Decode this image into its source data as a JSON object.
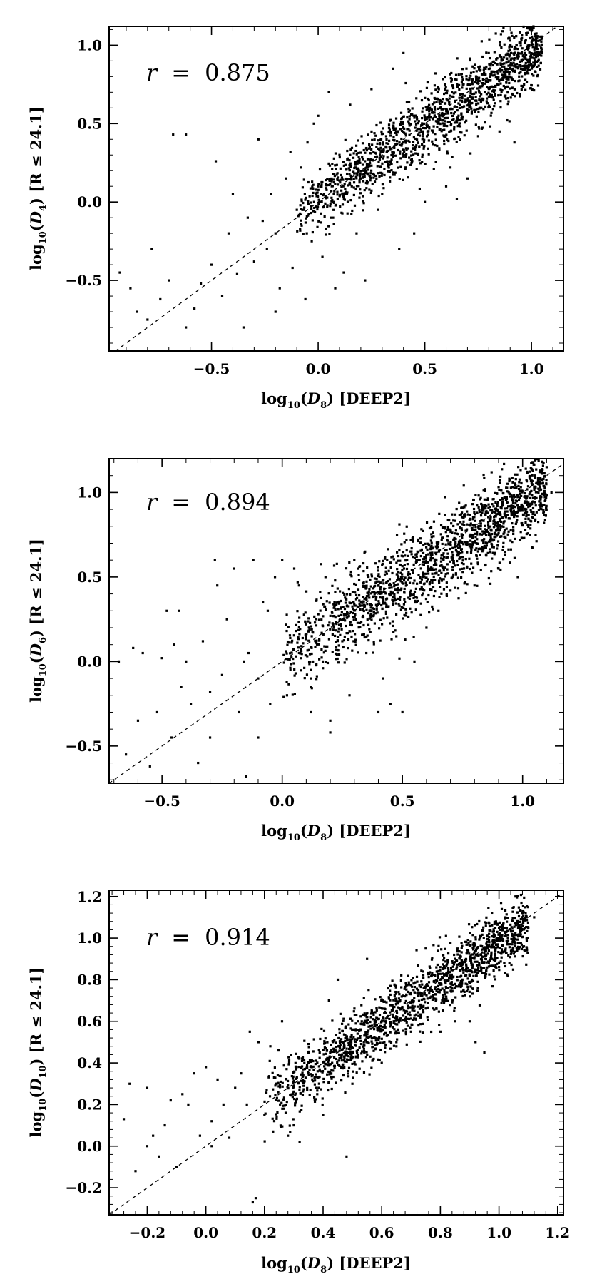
{
  "chart_data": [
    {
      "type": "scatter",
      "annotation": {
        "variable": "r",
        "equals": "=",
        "value": "0.875"
      },
      "xlabel": {
        "prefix": "log",
        "sub": "10",
        "open": "(",
        "var": "D",
        "var_sub": "8",
        "close": ")",
        "suffix": " [DEEP2]"
      },
      "ylabel": {
        "prefix": "log",
        "sub": "10",
        "open": "(",
        "var": "D",
        "var_sub": "4",
        "close": ")",
        "suffix": " [R ≤ 24.1]"
      },
      "xlim": [
        -0.98,
        1.15
      ],
      "ylim": [
        -0.95,
        1.12
      ],
      "xticks": [
        -0.5,
        0.0,
        0.5,
        1.0
      ],
      "xtick_labels": [
        "−0.5",
        "0.0",
        "0.5",
        "1.0"
      ],
      "yticks": [
        -0.5,
        0.0,
        0.5,
        1.0
      ],
      "ytick_labels": [
        "−0.5",
        "0.0",
        "0.5",
        "1.0"
      ],
      "reference_line": {
        "style": "dashed",
        "slope": 1,
        "intercept": 0
      },
      "points": [
        [
          -0.93,
          -0.45
        ],
        [
          -0.88,
          -0.55
        ],
        [
          -0.85,
          -0.7
        ],
        [
          -0.8,
          -0.75
        ],
        [
          -0.78,
          -0.3
        ],
        [
          -0.74,
          -0.62
        ],
        [
          -0.7,
          -0.5
        ],
        [
          -0.68,
          0.43
        ],
        [
          -0.62,
          0.43
        ],
        [
          -0.58,
          -0.68
        ],
        [
          -0.55,
          -0.52
        ],
        [
          -0.5,
          -0.4
        ],
        [
          -0.48,
          0.26
        ],
        [
          -0.45,
          -0.6
        ],
        [
          -0.42,
          -0.2
        ],
        [
          -0.4,
          0.05
        ],
        [
          -0.38,
          -0.46
        ],
        [
          -0.35,
          -0.8
        ],
        [
          -0.33,
          -0.1
        ],
        [
          -0.3,
          -0.38
        ],
        [
          -0.28,
          0.4
        ],
        [
          -0.26,
          -0.12
        ],
        [
          -0.24,
          -0.3
        ],
        [
          -0.22,
          0.05
        ],
        [
          -0.2,
          -0.2
        ],
        [
          -0.18,
          -0.55
        ],
        [
          -0.15,
          0.15
        ],
        [
          -0.13,
          0.32
        ],
        [
          -0.12,
          -0.42
        ],
        [
          -0.1,
          -0.05
        ],
        [
          -0.08,
          0.22
        ],
        [
          -0.06,
          -0.62
        ],
        [
          -0.05,
          0.38
        ],
        [
          -0.03,
          -0.25
        ],
        [
          0.0,
          0.55
        ],
        [
          0.0,
          0.1
        ],
        [
          0.02,
          -0.35
        ],
        [
          0.05,
          0.7
        ],
        [
          0.07,
          -0.1
        ],
        [
          0.1,
          0.3
        ],
        [
          0.12,
          -0.45
        ],
        [
          0.15,
          0.62
        ],
        [
          0.18,
          -0.2
        ],
        [
          0.2,
          0.15
        ],
        [
          0.22,
          -0.5
        ],
        [
          0.25,
          0.72
        ],
        [
          0.28,
          -0.05
        ],
        [
          0.3,
          0.05
        ],
        [
          0.35,
          0.85
        ],
        [
          0.38,
          -0.3
        ],
        [
          0.45,
          -0.2
        ],
        [
          0.5,
          0.0
        ],
        [
          0.55,
          0.82
        ],
        [
          0.6,
          0.1
        ],
        [
          0.65,
          0.02
        ],
        [
          0.7,
          0.15
        ],
        [
          0.75,
          0.42
        ],
        [
          0.85,
          0.45
        ],
        [
          0.92,
          0.38
        ],
        [
          1.0,
          1.0
        ],
        [
          1.05,
          1.05
        ],
        [
          0.98,
          0.86
        ],
        [
          0.9,
          0.85
        ],
        [
          -0.62,
          -0.8
        ],
        [
          -0.2,
          -0.7
        ],
        [
          0.08,
          -0.55
        ],
        [
          0.4,
          0.95
        ],
        [
          0.62,
          0.22
        ],
        [
          0.15,
          0.3
        ],
        [
          -0.02,
          0.5
        ]
      ],
      "cluster": {
        "x_range": [
          -0.1,
          1.05
        ],
        "slope": 0.92,
        "intercept": 0.02,
        "scatter_sd": 0.11,
        "count": 1500
      }
    },
    {
      "type": "scatter",
      "annotation": {
        "variable": "r",
        "equals": "=",
        "value": "0.894"
      },
      "xlabel": {
        "prefix": "log",
        "sub": "10",
        "open": "(",
        "var": "D",
        "var_sub": "8",
        "close": ")",
        "suffix": " [DEEP2]"
      },
      "ylabel": {
        "prefix": "log",
        "sub": "10",
        "open": "(",
        "var": "D",
        "var_sub": "6",
        "close": ")",
        "suffix": " [R ≤ 24.1]"
      },
      "xlim": [
        -0.72,
        1.17
      ],
      "ylim": [
        -0.72,
        1.2
      ],
      "xticks": [
        -0.5,
        0.0,
        0.5,
        1.0
      ],
      "xtick_labels": [
        "−0.5",
        "0.0",
        "0.5",
        "1.0"
      ],
      "yticks": [
        -0.5,
        0.0,
        0.5,
        1.0
      ],
      "ytick_labels": [
        "−0.5",
        "0.0",
        "0.5",
        "1.0"
      ],
      "reference_line": {
        "style": "dashed",
        "slope": 1,
        "intercept": 0
      },
      "points": [
        [
          -0.68,
          0.0
        ],
        [
          -0.65,
          -0.55
        ],
        [
          -0.62,
          0.08
        ],
        [
          -0.6,
          -0.35
        ],
        [
          -0.58,
          0.05
        ],
        [
          -0.55,
          -0.62
        ],
        [
          -0.52,
          -0.3
        ],
        [
          -0.5,
          0.02
        ],
        [
          -0.48,
          0.3
        ],
        [
          -0.46,
          -0.45
        ],
        [
          -0.45,
          0.1
        ],
        [
          -0.43,
          0.3
        ],
        [
          -0.42,
          -0.15
        ],
        [
          -0.4,
          0.0
        ],
        [
          -0.38,
          -0.25
        ],
        [
          -0.35,
          -0.6
        ],
        [
          -0.33,
          0.12
        ],
        [
          -0.3,
          -0.18
        ],
        [
          -0.28,
          0.6
        ],
        [
          -0.27,
          0.45
        ],
        [
          -0.25,
          -0.08
        ],
        [
          -0.23,
          0.25
        ],
        [
          -0.2,
          0.55
        ],
        [
          -0.18,
          -0.3
        ],
        [
          -0.16,
          0.0
        ],
        [
          -0.15,
          -0.68
        ],
        [
          -0.14,
          0.05
        ],
        [
          -0.12,
          0.6
        ],
        [
          -0.1,
          -0.1
        ],
        [
          -0.08,
          0.35
        ],
        [
          -0.06,
          0.3
        ],
        [
          -0.05,
          -0.25
        ],
        [
          -0.03,
          0.5
        ],
        [
          0.0,
          0.6
        ],
        [
          0.02,
          -0.2
        ],
        [
          0.05,
          0.55
        ],
        [
          0.07,
          0.45
        ],
        [
          0.1,
          0.22
        ],
        [
          0.12,
          -0.3
        ],
        [
          0.15,
          0.28
        ],
        [
          0.18,
          0.5
        ],
        [
          0.2,
          -0.35
        ],
        [
          0.22,
          0.48
        ],
        [
          0.25,
          0.12
        ],
        [
          0.28,
          -0.2
        ],
        [
          0.3,
          0.6
        ],
        [
          0.35,
          0.05
        ],
        [
          0.4,
          -0.3
        ],
        [
          0.42,
          -0.1
        ],
        [
          0.45,
          -0.25
        ],
        [
          0.5,
          -0.3
        ],
        [
          0.55,
          0.0
        ],
        [
          0.6,
          0.2
        ],
        [
          0.65,
          0.3
        ],
        [
          0.7,
          0.42
        ],
        [
          0.8,
          0.45
        ],
        [
          0.9,
          0.55
        ],
        [
          0.98,
          0.5
        ],
        [
          1.05,
          1.1
        ],
        [
          1.1,
          1.15
        ],
        [
          1.12,
          1.0
        ],
        [
          0.95,
          0.9
        ],
        [
          -0.3,
          -0.45
        ],
        [
          -0.1,
          -0.45
        ],
        [
          0.12,
          -0.05
        ],
        [
          0.2,
          -0.42
        ]
      ],
      "cluster": {
        "x_range": [
          0.0,
          1.1
        ],
        "slope": 0.92,
        "intercept": 0.02,
        "scatter_sd": 0.12,
        "count": 1700
      }
    },
    {
      "type": "scatter",
      "annotation": {
        "variable": "r",
        "equals": "=",
        "value": "0.914"
      },
      "xlabel": {
        "prefix": "log",
        "sub": "10",
        "open": "(",
        "var": "D",
        "var_sub": "8",
        "close": ")",
        "suffix": " [DEEP2]"
      },
      "ylabel": {
        "prefix": "log",
        "sub": "10",
        "open": "(",
        "var": "D",
        "var_sub": "10",
        "close": ")",
        "suffix": " [R ≤ 24.1]"
      },
      "xlim": [
        -0.33,
        1.22
      ],
      "ylim": [
        -0.33,
        1.23
      ],
      "xticks": [
        -0.2,
        0.0,
        0.2,
        0.4,
        0.6,
        0.8,
        1.0,
        1.2
      ],
      "xtick_labels": [
        "−0.2",
        "0.0",
        "0.2",
        "0.4",
        "0.6",
        "0.8",
        "1.0",
        "1.2"
      ],
      "yticks": [
        -0.2,
        0.0,
        0.2,
        0.4,
        0.6,
        0.8,
        1.0,
        1.2
      ],
      "ytick_labels": [
        "−0.2",
        "0.0",
        "0.2",
        "0.4",
        "0.6",
        "0.8",
        "1.0",
        "1.2"
      ],
      "reference_line": {
        "style": "dashed",
        "slope": 1,
        "intercept": 0
      },
      "points": [
        [
          -0.28,
          0.13
        ],
        [
          -0.26,
          0.3
        ],
        [
          -0.24,
          -0.12
        ],
        [
          -0.2,
          0.28
        ],
        [
          -0.18,
          0.05
        ],
        [
          -0.16,
          -0.05
        ],
        [
          -0.14,
          0.1
        ],
        [
          -0.12,
          0.22
        ],
        [
          -0.1,
          -0.1
        ],
        [
          -0.08,
          0.25
        ],
        [
          -0.06,
          0.2
        ],
        [
          -0.04,
          0.35
        ],
        [
          -0.02,
          0.05
        ],
        [
          0.0,
          0.38
        ],
        [
          0.02,
          0.12
        ],
        [
          0.04,
          0.32
        ],
        [
          0.06,
          0.2
        ],
        [
          0.08,
          0.04
        ],
        [
          0.1,
          0.28
        ],
        [
          0.12,
          0.35
        ],
        [
          0.14,
          0.2
        ],
        [
          0.15,
          0.55
        ],
        [
          0.17,
          -0.25
        ],
        [
          0.18,
          0.5
        ],
        [
          0.2,
          0.15
        ],
        [
          0.22,
          0.48
        ],
        [
          0.24,
          0.3
        ],
        [
          0.26,
          0.6
        ],
        [
          0.28,
          0.05
        ],
        [
          0.3,
          0.1
        ],
        [
          0.32,
          0.02
        ],
        [
          0.35,
          0.45
        ],
        [
          0.38,
          0.25
        ],
        [
          0.4,
          0.15
        ],
        [
          0.42,
          0.7
        ],
        [
          0.45,
          0.8
        ],
        [
          0.48,
          -0.05
        ],
        [
          0.5,
          0.3
        ],
        [
          0.55,
          0.9
        ],
        [
          0.6,
          0.4
        ],
        [
          0.65,
          0.5
        ],
        [
          0.7,
          0.55
        ],
        [
          0.75,
          0.95
        ],
        [
          0.8,
          0.55
        ],
        [
          0.85,
          0.6
        ],
        [
          0.9,
          0.6
        ],
        [
          0.92,
          0.5
        ],
        [
          0.95,
          0.45
        ],
        [
          1.0,
          1.05
        ],
        [
          1.05,
          1.0
        ],
        [
          1.1,
          1.05
        ],
        [
          1.12,
          1.1
        ],
        [
          0.16,
          -0.27
        ],
        [
          -0.2,
          0.0
        ],
        [
          0.02,
          0.0
        ]
      ],
      "cluster": {
        "x_range": [
          0.2,
          1.1
        ],
        "slope": 0.95,
        "intercept": 0.02,
        "scatter_sd": 0.075,
        "count": 1600
      }
    }
  ]
}
